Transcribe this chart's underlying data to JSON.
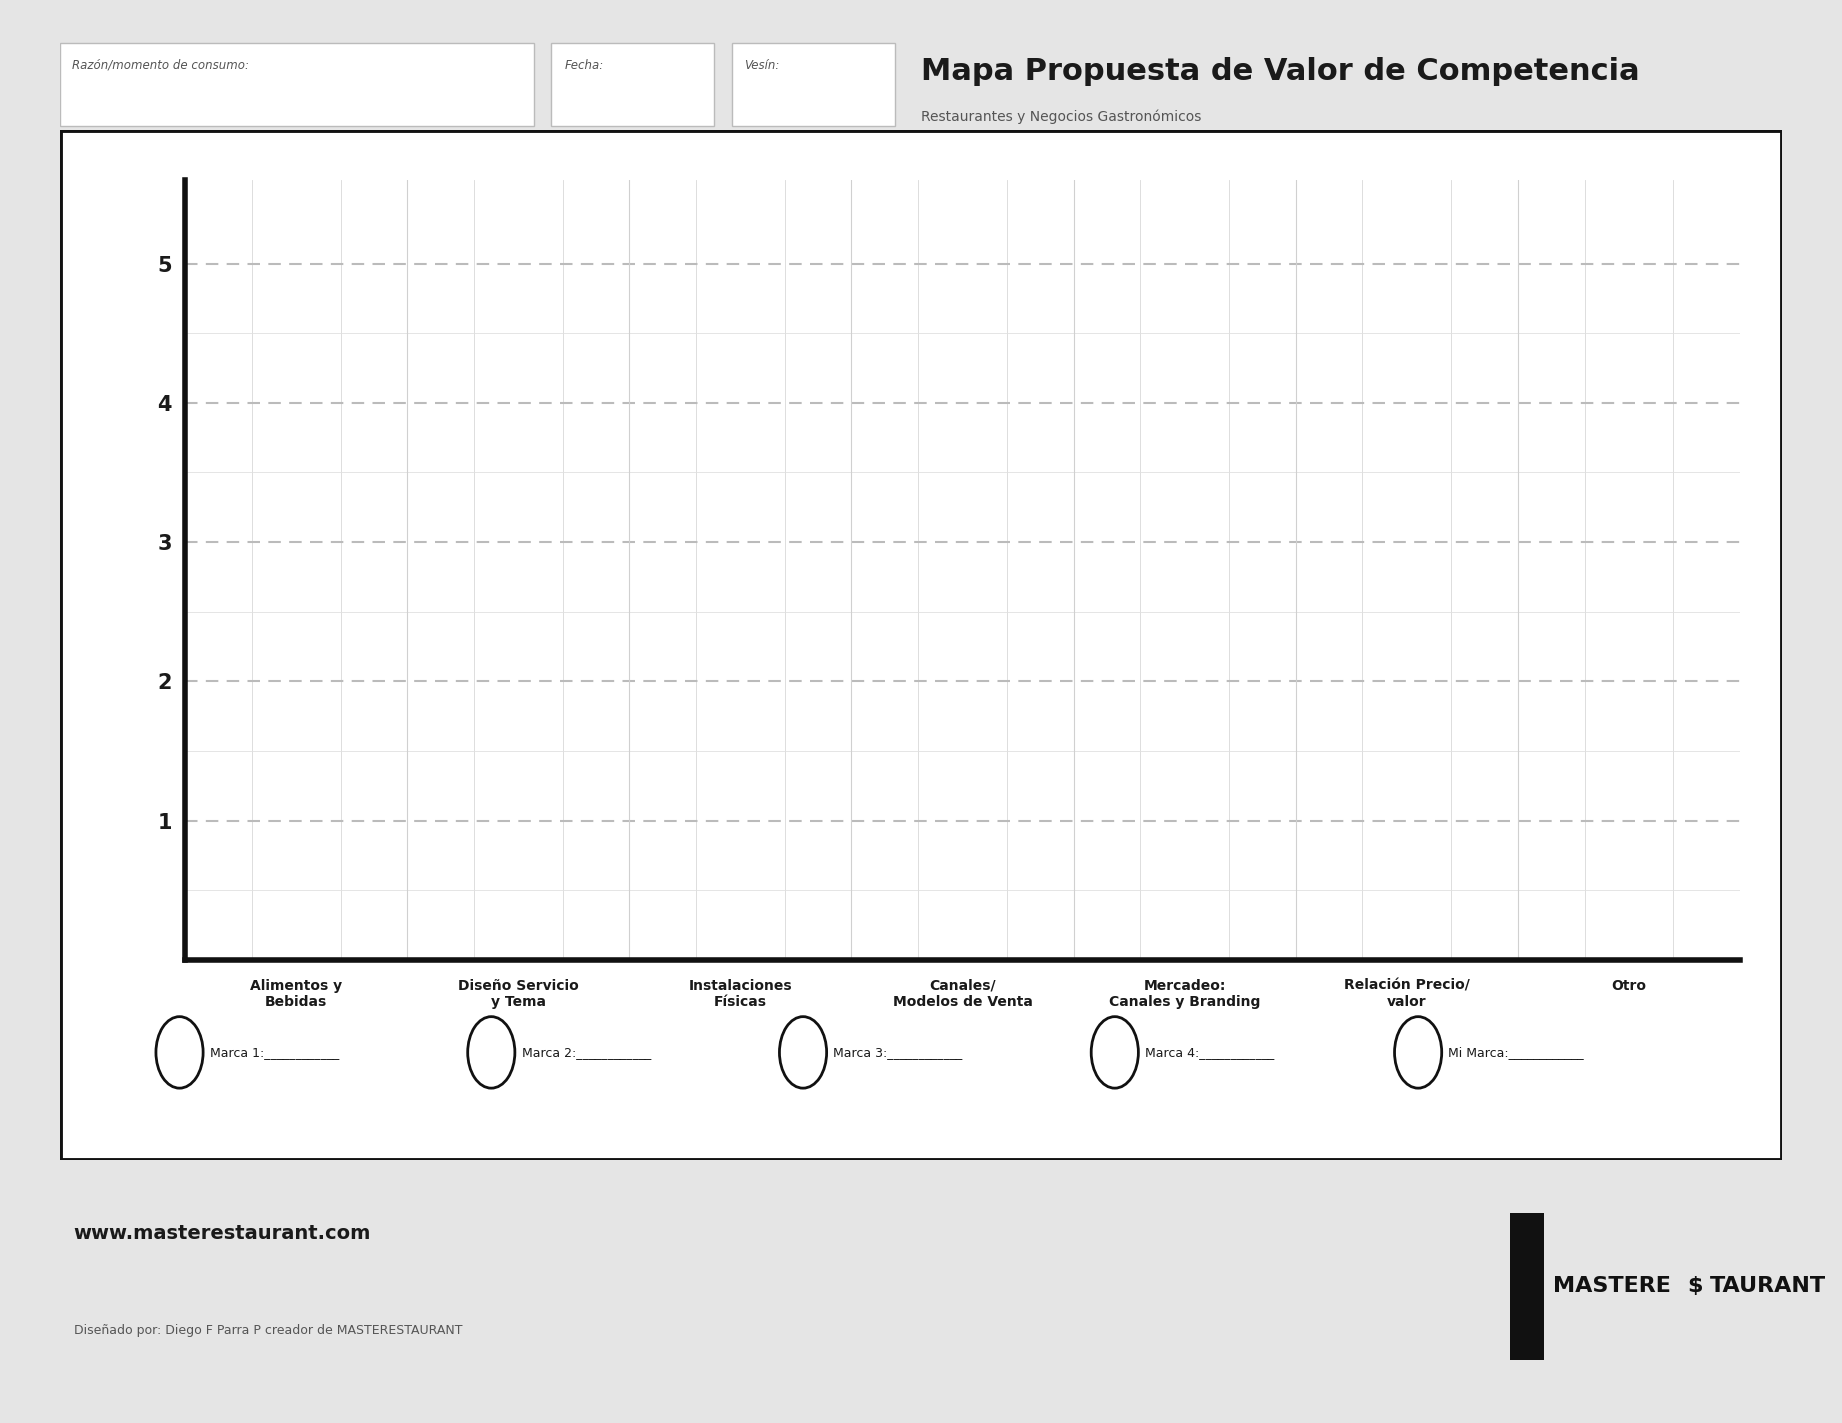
{
  "title": "Mapa Propuesta de Valor de Competencia",
  "subtitle": "Restaurantes y Negocios Gastronómicos",
  "header_labels": [
    "Razón/momento de consumo:",
    "Fecha:",
    "Vesín:"
  ],
  "x_categories": [
    "Alimentos y\nBebidas",
    "Diseño Servicio\ny Tema",
    "Instalaciones\nFísicas",
    "Canales/\nModelos de Venta",
    "Mercadeo:\nCanales y Branding",
    "Relación Precio/\nvalor",
    "Otro"
  ],
  "y_ticks": [
    1,
    2,
    3,
    4,
    5
  ],
  "y_min": 0,
  "y_max": 5.6,
  "legend_items": [
    "Marca 1:",
    "Marca 2:",
    "Marca 3:",
    "Marca 4:",
    "Mi Marca:"
  ],
  "bg_color": "#e5e5e5",
  "plot_bg_color": "#ffffff",
  "grid_color_h": "#bbbbbb",
  "grid_color_v": "#cccccc",
  "border_color": "#111111",
  "text_color": "#2a2a2a",
  "title_color": "#1a1a1a",
  "footer_web": "www.masterestaurant.com",
  "footer_designer": "Diseñado por: Diego F Parra P creador de MASTERESTAURANT",
  "logo_text": "MASTERE$TAURANT"
}
